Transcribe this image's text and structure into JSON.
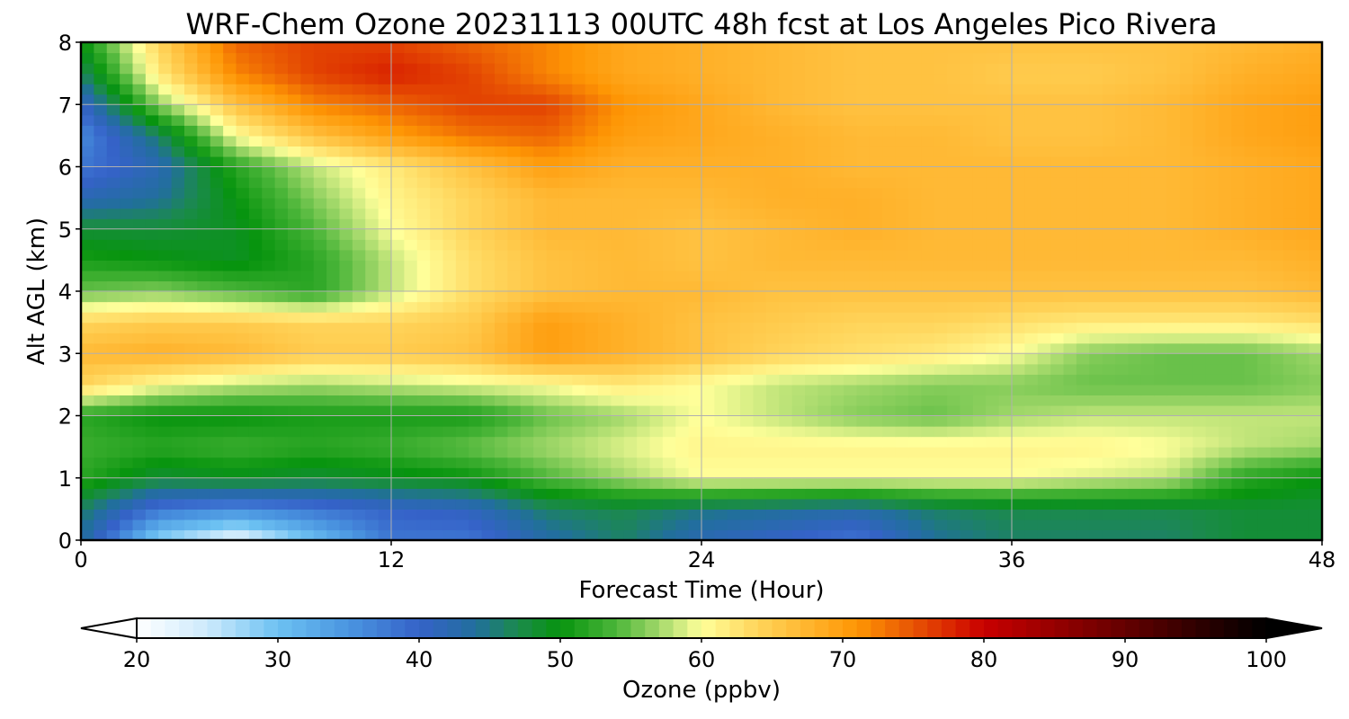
{
  "chart_data": {
    "type": "heatmap",
    "title": "WRF-Chem Ozone  20231113 00UTC 48h fcst at Los Angeles Pico Rivera",
    "xlabel": "Forecast Time (Hour)",
    "ylabel": "Alt AGL (km)",
    "xlim": [
      0,
      48
    ],
    "ylim": [
      0,
      8
    ],
    "x_ticks": [
      "0",
      "12",
      "24",
      "36",
      "48"
    ],
    "y_ticks": [
      "0",
      "1",
      "2",
      "3",
      "4",
      "5",
      "6",
      "7",
      "8"
    ],
    "grid": true,
    "x": [
      0,
      3,
      6,
      9,
      12,
      15,
      18,
      21,
      24,
      27,
      30,
      33,
      36,
      39,
      42,
      45,
      48
    ],
    "y": [
      0,
      0.5,
      1,
      1.5,
      2,
      2.5,
      3,
      3.5,
      4,
      4.5,
      5,
      5.5,
      6,
      6.5,
      7,
      7.5,
      8
    ],
    "z": [
      [
        44,
        28,
        22,
        30,
        38,
        38,
        43,
        46,
        42,
        40,
        38,
        44,
        46,
        46,
        46,
        48,
        48
      ],
      [
        46,
        38,
        36,
        38,
        40,
        41,
        46,
        47,
        45,
        44,
        43,
        46,
        47,
        47,
        47,
        48,
        48
      ],
      [
        52,
        48,
        49,
        48,
        49,
        50,
        54,
        57,
        60,
        60,
        60,
        60,
        60,
        59,
        58,
        52,
        50
      ],
      [
        53,
        52,
        53,
        52,
        53,
        55,
        57,
        59,
        61,
        61,
        61,
        61,
        61,
        61,
        60,
        58,
        57
      ],
      [
        52,
        50,
        50,
        51,
        51,
        51,
        55,
        57,
        60,
        58,
        56,
        55,
        57,
        58,
        58,
        58,
        58
      ],
      [
        64,
        60,
        58,
        57,
        58,
        59,
        60,
        62,
        60,
        58,
        57,
        56,
        56,
        55,
        55,
        55,
        56
      ],
      [
        67,
        68,
        67,
        65,
        65,
        66,
        70,
        68,
        66,
        64,
        63,
        62,
        60,
        56,
        55,
        55,
        57
      ],
      [
        64,
        65,
        65,
        64,
        64,
        65,
        70,
        68,
        66,
        65,
        64,
        64,
        63,
        62,
        62,
        62,
        63
      ],
      [
        55,
        56,
        54,
        52,
        58,
        63,
        66,
        67,
        67,
        66,
        66,
        66,
        66,
        66,
        66,
        66,
        67
      ],
      [
        51,
        50,
        49,
        52,
        58,
        63,
        66,
        67,
        66,
        67,
        67,
        67,
        67,
        67,
        67,
        67,
        68
      ],
      [
        48,
        48,
        49,
        54,
        60,
        64,
        67,
        67,
        66,
        67,
        68,
        67,
        67,
        67,
        67,
        68,
        69
      ],
      [
        42,
        44,
        50,
        56,
        61,
        64,
        67,
        67,
        67,
        68,
        68,
        67,
        67,
        67,
        67,
        68,
        69
      ],
      [
        38,
        42,
        52,
        58,
        62,
        66,
        70,
        68,
        68,
        68,
        67,
        67,
        67,
        67,
        67,
        68,
        69
      ],
      [
        36,
        46,
        60,
        66,
        70,
        73,
        74,
        70,
        69,
        68,
        67,
        67,
        66,
        66,
        67,
        69,
        70
      ],
      [
        40,
        56,
        66,
        72,
        74,
        76,
        76,
        71,
        69,
        67,
        66,
        66,
        66,
        66,
        67,
        69,
        70
      ],
      [
        46,
        62,
        72,
        76,
        78,
        76,
        72,
        69,
        68,
        67,
        66,
        66,
        65,
        65,
        66,
        68,
        69
      ],
      [
        50,
        64,
        74,
        76,
        76,
        74,
        72,
        69,
        68,
        67,
        66,
        66,
        66,
        66,
        66,
        67,
        68
      ]
    ],
    "colorbar": {
      "label": "Ozone  (ppbv)",
      "min": 20,
      "max": 100,
      "ticks": [
        "20",
        "30",
        "40",
        "50",
        "60",
        "70",
        "80",
        "90",
        "100"
      ],
      "extend": "both",
      "palette": [
        [
          20,
          "#ffffff"
        ],
        [
          25,
          "#cdeafc"
        ],
        [
          30,
          "#6cc1f2"
        ],
        [
          35,
          "#4a95e0"
        ],
        [
          40,
          "#3562c8"
        ],
        [
          44,
          "#216f9c"
        ],
        [
          47,
          "#1b8a4c"
        ],
        [
          50,
          "#07940e"
        ],
        [
          54,
          "#4db63a"
        ],
        [
          57,
          "#a2d86a"
        ],
        [
          60,
          "#ffff9a"
        ],
        [
          64,
          "#ffd45a"
        ],
        [
          68,
          "#ffb028"
        ],
        [
          71,
          "#fe9604"
        ],
        [
          74,
          "#ed6404"
        ],
        [
          78,
          "#d82000"
        ],
        [
          80,
          "#c80000"
        ],
        [
          85,
          "#960000"
        ],
        [
          90,
          "#640000"
        ],
        [
          95,
          "#300000"
        ],
        [
          100,
          "#000000"
        ]
      ]
    }
  }
}
